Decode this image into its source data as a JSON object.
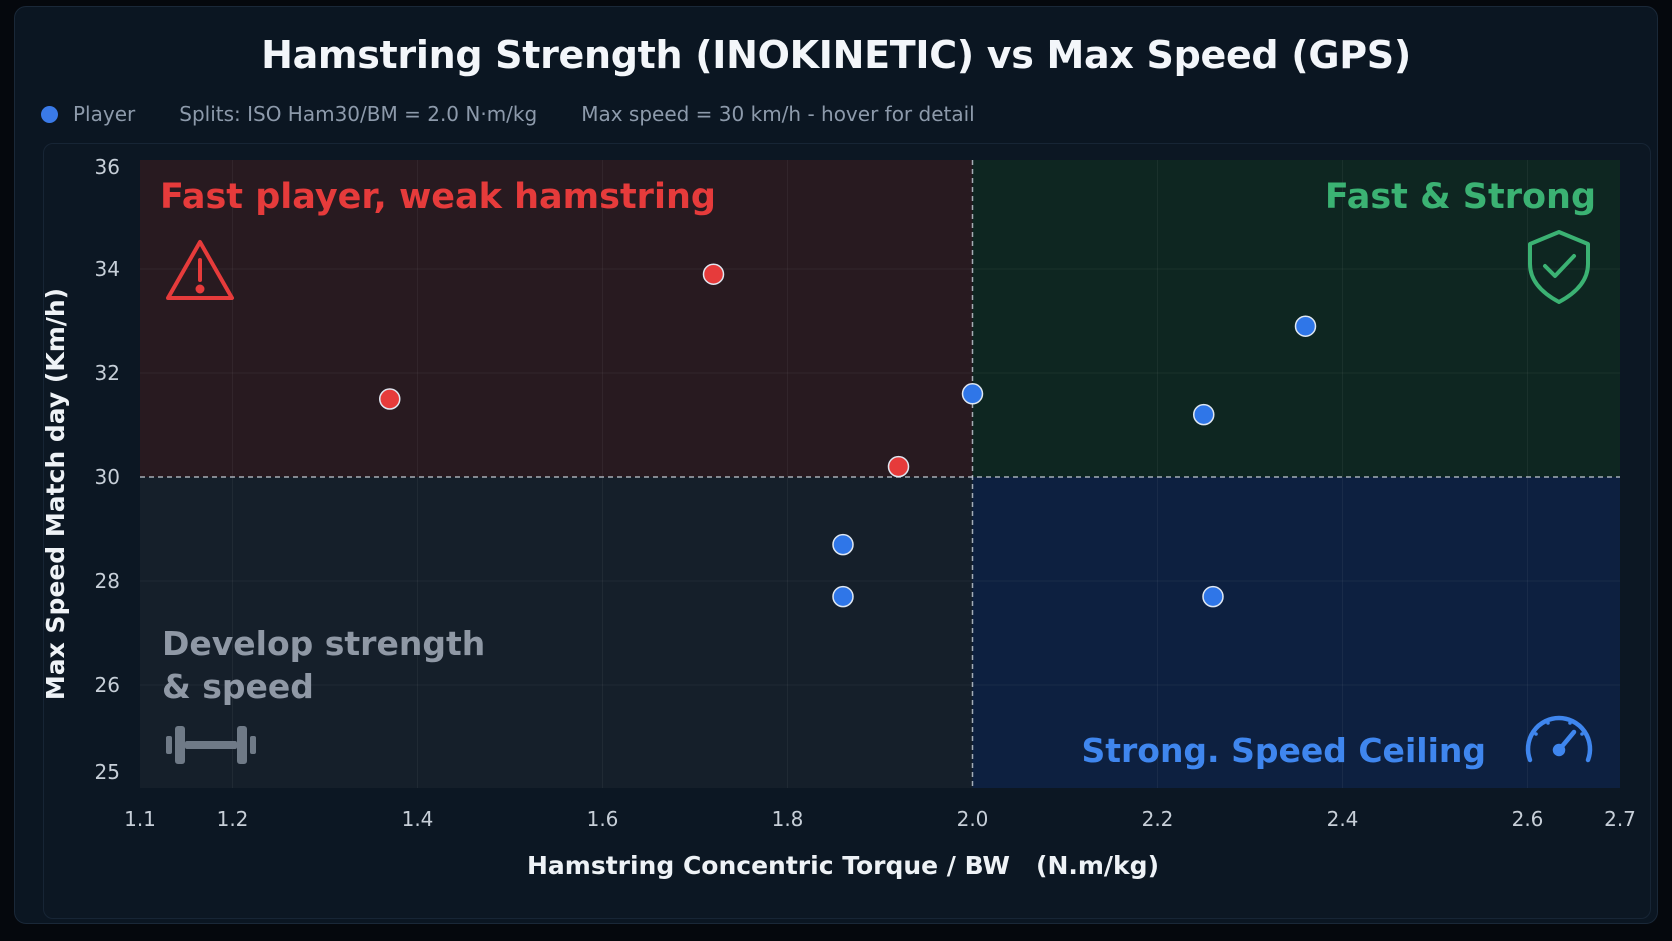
{
  "title": "Hamstring Strength (INOKINETIC) vs Max Speed (GPS)",
  "legend": {
    "player_label": "Player",
    "splits_text": "Splits: ISO Ham30/BM = 2.0 N·m/kg",
    "speed_text": "Max speed = 30 km/h - hover for detail"
  },
  "colors": {
    "red": "#e63b3b",
    "blue": "#2f76e8",
    "green_text": "#3bb273",
    "blue_text": "#3f86ee",
    "gray_text": "#8f98a5"
  },
  "chart_data": {
    "type": "scatter",
    "title": "Hamstring Strength (INOKINETIC) vs Max Speed (GPS)",
    "xlabel": "Hamstring Concentric Torque / BW   (N.m/kg)",
    "ylabel": "Max Speed Match day (Km/h)",
    "xlim": [
      1.1,
      2.7
    ],
    "x_ticks": [
      "1.1",
      "1.2",
      "1.4",
      "1.6",
      "1.8",
      "2.0",
      "2.2",
      "2.4",
      "2.6",
      "2.7"
    ],
    "y_ticks": [
      "36",
      "34",
      "32",
      "30",
      "28",
      "26",
      "25"
    ],
    "x_split": 2.0,
    "y_split": 30,
    "grid": true,
    "quadrants": {
      "top_left": "Fast player, weak hamstring",
      "top_right": "Fast & Strong",
      "bottom_left_line1": "Develop strength",
      "bottom_left_line2": "& speed",
      "bottom_right": "Strong. Speed Ceiling"
    },
    "quadrant_icons": {
      "top_left": "warning-icon",
      "top_right": "shield-check-icon",
      "bottom_left": "dumbbell-icon",
      "bottom_right": "speedometer-icon"
    },
    "points": [
      {
        "x": 1.37,
        "y": 31.5,
        "group": "red"
      },
      {
        "x": 1.72,
        "y": 33.9,
        "group": "red"
      },
      {
        "x": 1.92,
        "y": 30.2,
        "group": "red"
      },
      {
        "x": 2.0,
        "y": 31.6,
        "group": "blue"
      },
      {
        "x": 1.86,
        "y": 28.7,
        "group": "blue"
      },
      {
        "x": 1.86,
        "y": 27.7,
        "group": "blue"
      },
      {
        "x": 2.25,
        "y": 31.2,
        "group": "blue"
      },
      {
        "x": 2.36,
        "y": 32.9,
        "group": "blue"
      },
      {
        "x": 2.26,
        "y": 27.7,
        "group": "blue"
      }
    ]
  }
}
